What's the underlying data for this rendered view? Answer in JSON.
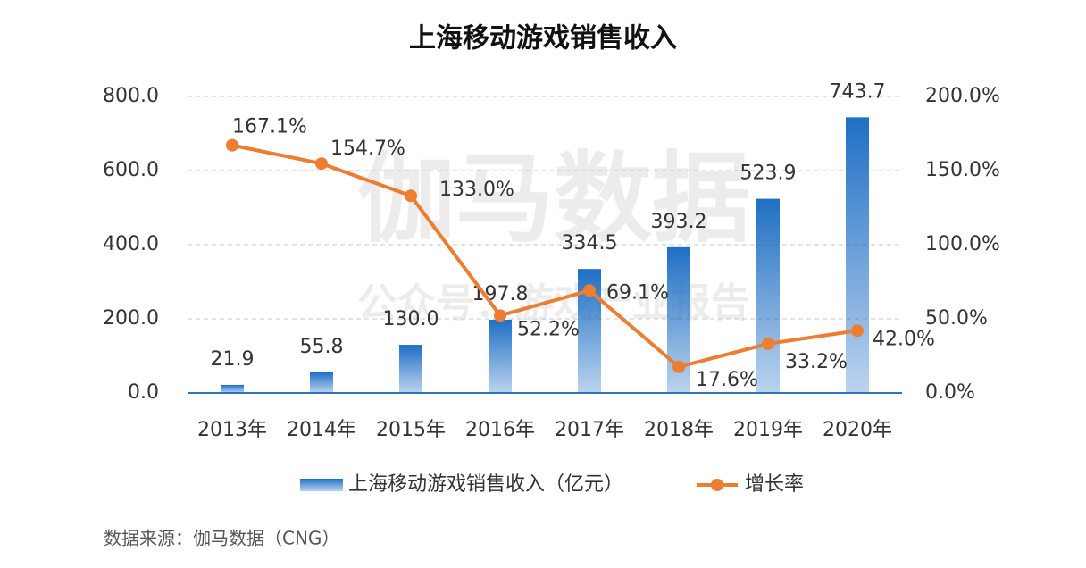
{
  "chart_data": {
    "type": "bar",
    "title": "上海移动游戏销售收入",
    "watermark": [
      "伽马数据",
      "公众号：游戏产业报告"
    ],
    "source": "数据来源：伽马数据（CNG）",
    "categories": [
      "2013年",
      "2014年",
      "2015年",
      "2016年",
      "2017年",
      "2018年",
      "2019年",
      "2020年"
    ],
    "series": [
      {
        "name": "上海移动游戏销售收入（亿元）",
        "color": "#1f6fc5",
        "values": [
          21.9,
          55.8,
          130,
          197.8,
          334.5,
          393.2,
          523.9,
          743.7
        ],
        "value_labels": [
          "21.9",
          "55.8",
          "130.0",
          "197.8",
          "334.5",
          "393.2",
          "523.9",
          "743.7"
        ]
      },
      {
        "name": "增长率",
        "type": "line",
        "axis": "y2",
        "color": "#ed7d31",
        "values": [
          167.1,
          154.7,
          133,
          52.2,
          69.1,
          17.6,
          33.2,
          42
        ],
        "value_labels": [
          "167.1%",
          "154.7%",
          "133.0%",
          "52.2%",
          "69.1%",
          "17.6%",
          "33.2%",
          "42.0%"
        ]
      }
    ],
    "ylim": [
      0,
      800
    ],
    "yticks": [
      {
        "value": 0,
        "label": "0.0"
      },
      {
        "value": 200,
        "label": "200.0"
      },
      {
        "value": 400,
        "label": "400.0"
      },
      {
        "value": 600,
        "label": "600.0"
      },
      {
        "value": 800,
        "label": "800.0"
      }
    ],
    "y2lim": [
      0,
      200
    ],
    "y2ticks": [
      {
        "value": 0,
        "label": "0.0%"
      },
      {
        "value": 50,
        "label": "50.0%"
      },
      {
        "value": 100,
        "label": "100.0%"
      },
      {
        "value": 150,
        "label": "150.0%"
      },
      {
        "value": 200,
        "label": "200.0%"
      }
    ],
    "grid": true
  }
}
